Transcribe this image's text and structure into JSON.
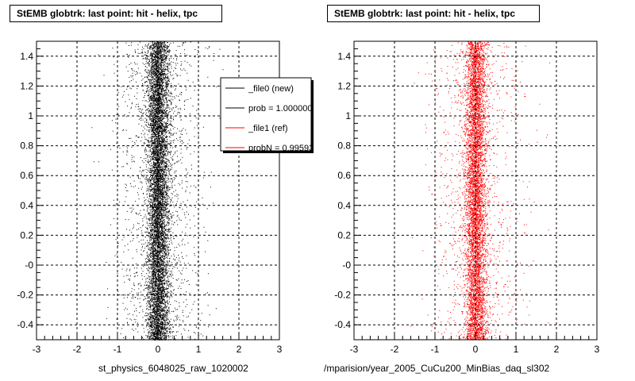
{
  "footer_text": "",
  "colors": {
    "black_series": "#000000",
    "red_series": "#ff0000",
    "grid": "#000000",
    "legend_shadow": "#000000"
  },
  "chart_data": [
    {
      "type": "scatter",
      "title": "StEMB globtrk: last point: hit - helix, tpc",
      "xlabel": "st_physics_6048025_raw_1020002",
      "ylabel": "",
      "xlim": [
        -3,
        3
      ],
      "ylim": [
        -0.5,
        1.5
      ],
      "xticks": [
        "-3",
        "-2",
        "-1",
        "0",
        "1",
        "2",
        "3"
      ],
      "yticks": [
        "-0.4",
        "-0.2",
        "-0",
        "0.2",
        "0.4",
        "0.6",
        "0.8",
        "1",
        "1.2",
        "1.4"
      ],
      "grid": true,
      "series": [
        {
          "name": "_file0 (new)",
          "color": "#000000",
          "center_x": 0.0,
          "core_sigma": 0.13,
          "halo_sigma": 0.5,
          "points": 9000
        }
      ],
      "legend": {
        "placement": "top-right",
        "entries": [
          {
            "label": "_file0 (new)",
            "color": "#000000"
          },
          {
            "label": "prob = 1.000000",
            "color": "#000000"
          },
          {
            "label": "_file1 (ref)",
            "color": "#ff0000"
          },
          {
            "label": "probN = 0.995930",
            "color": "#ff0000"
          }
        ]
      }
    },
    {
      "type": "scatter",
      "title": "StEMB globtrk: last point: hit - helix, tpc",
      "xlabel": "mparision/year_2005_CuCu200_MinBias_daq_sl302/",
      "ylabel": "",
      "xlim": [
        -3,
        3
      ],
      "ylim": [
        -0.5,
        1.5
      ],
      "xticks": [
        "-3",
        "-2",
        "-1",
        "0",
        "1",
        "2",
        "3"
      ],
      "yticks": [
        "-0.4",
        "-0.2",
        "-0",
        "0.2",
        "0.4",
        "0.6",
        "0.8",
        "1",
        "1.2",
        "1.4"
      ],
      "grid": true,
      "series": [
        {
          "name": "_file1 (ref)",
          "color": "#ff0000",
          "center_x": 0.0,
          "core_sigma": 0.13,
          "halo_sigma": 0.55,
          "points": 7000
        }
      ]
    }
  ]
}
